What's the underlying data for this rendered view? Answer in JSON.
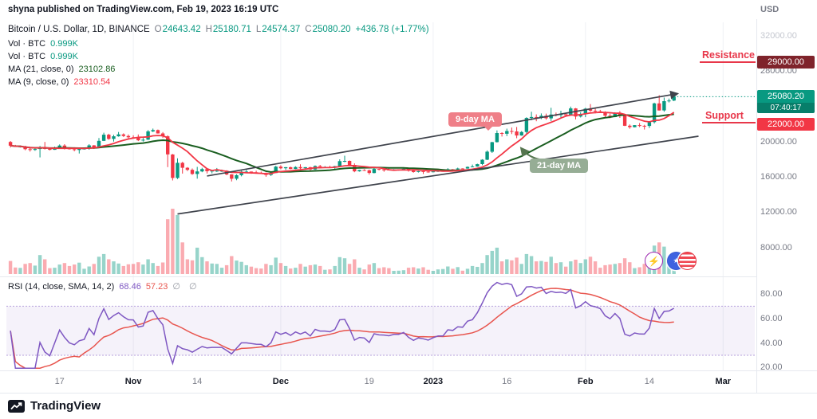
{
  "header": {
    "publish_text": "shyna published on TradingView.com, Feb 19, 2023 16:19 UTC",
    "currency_label": "USD"
  },
  "legend": {
    "symbol": "Bitcoin / U.S. Dollar, 1D, BINANCE",
    "o_label": "O",
    "o": "24643.42",
    "h_label": "H",
    "h": "25180.71",
    "l_label": "L",
    "l": "24574.37",
    "c_label": "C",
    "c": "25080.20",
    "change": "+436.78 (+1.77%)",
    "vol1": {
      "label": "Vol · BTC",
      "value": "0.999K"
    },
    "vol2": {
      "label": "Vol · BTC",
      "value": "0.999K"
    },
    "ma21": {
      "label": "MA (21, close, 0)",
      "value": "23102.86"
    },
    "ma9": {
      "label": "MA (9, close, 0)",
      "value": "23310.54"
    }
  },
  "rsi_legend": {
    "label": "RSI (14, close, SMA, 14, 2)",
    "value": "68.46",
    "signal": "57.23",
    "flags": "∅ ∅"
  },
  "annotations": {
    "resistance": "Resistance",
    "support": "Support",
    "ma9_label": "9-day MA",
    "ma21_label": "21-day MA"
  },
  "price_axis": {
    "resistance_badge": "29000.00",
    "last_price_badge": "25080.20",
    "countdown": "07:40:17",
    "support_badge": "22000.00"
  },
  "icons": {
    "boost": "⚡",
    "star": "★"
  },
  "footer": {
    "brand": "TradingView"
  },
  "colors": {
    "up": "#089981",
    "down": "#f23645",
    "rsi_purple": "#7e57c2",
    "annotation_red": "#e8374a",
    "badge_resistance": "#7f232b",
    "badge_support": "#f23645",
    "badge_last": "#089981",
    "ma9_callout_bg": "#ef7f88",
    "ma21_callout_bg": "#96ad95"
  },
  "chart_data": [
    {
      "type": "candlestick",
      "title": "Bitcoin / U.S. Dollar",
      "interval": "1D",
      "exchange": "BINANCE",
      "last": {
        "open": 24643.42,
        "high": 25180.71,
        "low": 24574.37,
        "close": 25080.2,
        "change": 436.78,
        "change_pct": 1.77
      },
      "ylim": [
        5000,
        33500
      ],
      "colors": {
        "up": "#089981",
        "down": "#f23645",
        "ma21": "#1a5e20",
        "ma9": "#f23645",
        "trendline": "#3f434c",
        "grid": "#eff1f5"
      },
      "ma_overlays": [
        {
          "period": 21,
          "last": 23102.86
        },
        {
          "period": 9,
          "last": 23310.54
        }
      ],
      "levels": [
        {
          "price": 29000,
          "label": "Resistance"
        },
        {
          "price": 22000,
          "label": "Support"
        }
      ],
      "trendlines": [
        {
          "name": "channel-support",
          "i1": 34,
          "p1": 11800,
          "i2": 140,
          "p2": 20600,
          "arrow": false
        },
        {
          "name": "channel-resistance",
          "i1": 40,
          "p1": 16100,
          "i2": 135.5,
          "p2": 25400,
          "arrow": true
        }
      ],
      "price_ticks": [
        {
          "text": "32000.00",
          "p": 32000,
          "faded": true
        },
        {
          "text": "28000.00",
          "p": 28000
        },
        {
          "text": "20000.00",
          "p": 20000
        },
        {
          "text": "16000.00",
          "p": 16000
        },
        {
          "text": "12000.00",
          "p": 12000
        },
        {
          "text": "8000.00",
          "p": 8000
        }
      ],
      "time_ticks": [
        {
          "text": "17",
          "i": 10,
          "major": false
        },
        {
          "text": "Nov",
          "i": 25,
          "major": true
        },
        {
          "text": "14",
          "i": 38,
          "major": false
        },
        {
          "text": "Dec",
          "i": 55,
          "major": true
        },
        {
          "text": "19",
          "i": 73,
          "major": false
        },
        {
          "text": "2023",
          "i": 86,
          "major": true
        },
        {
          "text": "16",
          "i": 101,
          "major": false
        },
        {
          "text": "Feb",
          "i": 117,
          "major": true
        },
        {
          "text": "14",
          "i": 130,
          "major": false
        },
        {
          "text": "Mar",
          "i": 145,
          "major": true
        }
      ],
      "ohlcv": [
        [
          19950,
          20060,
          19320,
          19530,
          620
        ],
        [
          19530,
          19620,
          19410,
          19420,
          310
        ],
        [
          19420,
          19550,
          19320,
          19440,
          290
        ],
        [
          19440,
          19520,
          19020,
          19130,
          480
        ],
        [
          19130,
          19260,
          18860,
          19050,
          520
        ],
        [
          19050,
          19230,
          18950,
          19150,
          400
        ],
        [
          19150,
          19500,
          18200,
          19370,
          900
        ],
        [
          19370,
          19950,
          19100,
          19170,
          700
        ],
        [
          19170,
          19220,
          19000,
          19060,
          280
        ],
        [
          19060,
          19420,
          19060,
          19260,
          300
        ],
        [
          19260,
          19670,
          19160,
          19550,
          450
        ],
        [
          19550,
          19700,
          19100,
          19330,
          520
        ],
        [
          19330,
          19350,
          19090,
          19120,
          380
        ],
        [
          19120,
          19350,
          18900,
          19040,
          450
        ],
        [
          19040,
          19250,
          18650,
          19160,
          540
        ],
        [
          19160,
          19250,
          19100,
          19200,
          250
        ],
        [
          19200,
          19700,
          19070,
          19570,
          360
        ],
        [
          19570,
          19600,
          19160,
          19330,
          480
        ],
        [
          19330,
          20400,
          19250,
          20080,
          820
        ],
        [
          20080,
          21000,
          20050,
          20770,
          950
        ],
        [
          20770,
          20880,
          20200,
          20290,
          700
        ],
        [
          20290,
          20760,
          20000,
          20590,
          600
        ],
        [
          20590,
          21080,
          20550,
          20810,
          500
        ],
        [
          20810,
          20930,
          20520,
          20630,
          380
        ],
        [
          20630,
          20800,
          20220,
          20490,
          460
        ],
        [
          20490,
          20700,
          20330,
          20480,
          480
        ],
        [
          20480,
          20800,
          20050,
          20150,
          560
        ],
        [
          20150,
          20400,
          20000,
          20210,
          450
        ],
        [
          20210,
          21300,
          20180,
          21150,
          700
        ],
        [
          21150,
          21470,
          21070,
          21300,
          520
        ],
        [
          21300,
          21360,
          20900,
          20920,
          380
        ],
        [
          20920,
          21070,
          20400,
          20590,
          550
        ],
        [
          20590,
          20700,
          17100,
          18540,
          2600
        ],
        [
          18540,
          18590,
          15600,
          15880,
          3100
        ],
        [
          15880,
          18100,
          15750,
          17590,
          2800
        ],
        [
          17590,
          17700,
          16370,
          17030,
          1500
        ],
        [
          17030,
          17100,
          16650,
          16800,
          700
        ],
        [
          16800,
          16950,
          16230,
          16330,
          650
        ],
        [
          16330,
          17130,
          15800,
          16620,
          1250
        ],
        [
          16620,
          17020,
          16530,
          16880,
          800
        ],
        [
          16880,
          16980,
          16380,
          16650,
          600
        ],
        [
          16650,
          16750,
          16390,
          16700,
          500
        ],
        [
          16700,
          17000,
          16550,
          16700,
          480
        ],
        [
          16700,
          16820,
          16550,
          16700,
          300
        ],
        [
          16700,
          16750,
          16180,
          16280,
          420
        ],
        [
          16280,
          16300,
          15480,
          15780,
          850
        ],
        [
          15780,
          16290,
          15620,
          16190,
          640
        ],
        [
          16190,
          16700,
          16060,
          16600,
          580
        ],
        [
          16600,
          16790,
          16450,
          16600,
          420
        ],
        [
          16600,
          16620,
          16350,
          16520,
          350
        ],
        [
          16520,
          16700,
          16400,
          16460,
          280
        ],
        [
          16460,
          16600,
          16410,
          16440,
          260
        ],
        [
          16440,
          16490,
          16010,
          16220,
          480
        ],
        [
          16220,
          16550,
          16100,
          16440,
          420
        ],
        [
          16440,
          17250,
          16430,
          17160,
          780
        ],
        [
          17160,
          17320,
          16860,
          16970,
          520
        ],
        [
          16970,
          17110,
          16790,
          17090,
          380
        ],
        [
          17090,
          17160,
          16860,
          16890,
          260
        ],
        [
          16890,
          17200,
          16880,
          17110,
          300
        ],
        [
          17110,
          17420,
          16870,
          16970,
          480
        ],
        [
          16970,
          17110,
          16910,
          17090,
          350
        ],
        [
          17090,
          17140,
          16680,
          16840,
          420
        ],
        [
          16840,
          17300,
          16790,
          17230,
          450
        ],
        [
          17230,
          17360,
          17060,
          17130,
          380
        ],
        [
          17130,
          17220,
          17100,
          17130,
          200
        ],
        [
          17130,
          17270,
          17070,
          17090,
          220
        ],
        [
          17090,
          17240,
          16870,
          17210,
          380
        ],
        [
          17210,
          17990,
          17080,
          17780,
          800
        ],
        [
          17780,
          18390,
          17660,
          17810,
          750
        ],
        [
          17810,
          17860,
          17320,
          17360,
          480
        ],
        [
          17360,
          17530,
          16530,
          16630,
          700
        ],
        [
          16630,
          16800,
          16590,
          16780,
          300
        ],
        [
          16780,
          16870,
          16670,
          16740,
          220
        ],
        [
          16740,
          16820,
          16260,
          16440,
          450
        ],
        [
          16440,
          17060,
          16400,
          16900,
          520
        ],
        [
          16900,
          16930,
          16730,
          16830,
          280
        ],
        [
          16830,
          16870,
          16580,
          16820,
          320
        ],
        [
          16820,
          16960,
          16740,
          16780,
          280
        ],
        [
          16780,
          16880,
          16720,
          16840,
          150
        ],
        [
          16840,
          16860,
          16710,
          16840,
          160
        ],
        [
          16840,
          16950,
          16800,
          16920,
          180
        ],
        [
          16920,
          16980,
          16590,
          16700,
          300
        ],
        [
          16700,
          16780,
          16470,
          16550,
          320
        ],
        [
          16550,
          16660,
          16490,
          16640,
          260
        ],
        [
          16640,
          16650,
          16330,
          16600,
          320
        ],
        [
          16600,
          16680,
          16470,
          16540,
          200
        ],
        [
          16540,
          16630,
          16500,
          16620,
          150
        ],
        [
          16620,
          16780,
          16550,
          16670,
          220
        ],
        [
          16670,
          16780,
          16600,
          16670,
          240
        ],
        [
          16670,
          16990,
          16650,
          16860,
          360
        ],
        [
          16860,
          16880,
          16750,
          16840,
          250
        ],
        [
          16840,
          17040,
          16680,
          16950,
          330
        ],
        [
          16950,
          16980,
          16910,
          16940,
          160
        ],
        [
          16940,
          17180,
          16920,
          17130,
          250
        ],
        [
          17130,
          17390,
          17110,
          17180,
          380
        ],
        [
          17180,
          17490,
          17150,
          17440,
          340
        ],
        [
          17440,
          18000,
          17320,
          17940,
          520
        ],
        [
          17940,
          19000,
          17900,
          18850,
          900
        ],
        [
          18850,
          19970,
          18710,
          19930,
          1100
        ],
        [
          19930,
          21260,
          19890,
          20960,
          1250
        ],
        [
          20960,
          21050,
          20570,
          20880,
          600
        ],
        [
          20880,
          21460,
          20610,
          21190,
          700
        ],
        [
          21190,
          21590,
          20850,
          21140,
          650
        ],
        [
          21140,
          21650,
          20380,
          20680,
          780
        ],
        [
          20680,
          21190,
          20660,
          21080,
          480
        ],
        [
          21080,
          22750,
          20900,
          22670,
          950
        ],
        [
          22670,
          23370,
          22420,
          22780,
          850
        ],
        [
          22780,
          23070,
          22300,
          22710,
          600
        ],
        [
          22710,
          23180,
          22530,
          22920,
          620
        ],
        [
          22920,
          23160,
          22470,
          22630,
          580
        ],
        [
          22630,
          23820,
          22320,
          23060,
          820
        ],
        [
          23060,
          23280,
          22850,
          23010,
          520
        ],
        [
          23010,
          23490,
          22610,
          23080,
          560
        ],
        [
          23080,
          23190,
          22880,
          23030,
          350
        ],
        [
          23030,
          23960,
          22970,
          23750,
          600
        ],
        [
          23750,
          23800,
          22510,
          22830,
          680
        ],
        [
          22830,
          23320,
          22720,
          23130,
          520
        ],
        [
          23130,
          23810,
          22760,
          23720,
          700
        ],
        [
          23720,
          24250,
          23370,
          23490,
          820
        ],
        [
          23490,
          23710,
          23190,
          23430,
          600
        ],
        [
          23430,
          23590,
          23290,
          23330,
          300
        ],
        [
          23330,
          23430,
          22630,
          22930,
          420
        ],
        [
          22930,
          23160,
          22640,
          22760,
          450
        ],
        [
          22760,
          23320,
          22750,
          23250,
          480
        ],
        [
          23250,
          23440,
          22680,
          22960,
          520
        ],
        [
          22960,
          23010,
          21750,
          21790,
          750
        ],
        [
          21790,
          21940,
          21450,
          21630,
          560
        ],
        [
          21630,
          21870,
          21600,
          21860,
          280
        ],
        [
          21860,
          22090,
          21640,
          21780,
          320
        ],
        [
          21780,
          21890,
          21360,
          21770,
          480
        ],
        [
          21770,
          22320,
          21530,
          22200,
          560
        ],
        [
          22200,
          24400,
          22050,
          24320,
          1350
        ],
        [
          24320,
          25250,
          23520,
          23520,
          1500
        ],
        [
          23520,
          24980,
          23370,
          24570,
          1300
        ],
        [
          24570,
          24870,
          24430,
          24640,
          600
        ],
        [
          24643.42,
          25180.71,
          24574.37,
          25080.2,
          999
        ]
      ]
    },
    {
      "type": "line",
      "name": "RSI",
      "params": "14, close, SMA, 14, 2",
      "period": 14,
      "signal_period": 14,
      "last_value": 68.46,
      "last_signal": 57.23,
      "ylim": [
        19,
        91
      ],
      "bands": [
        30,
        70
      ],
      "ticks": [
        {
          "text": "80.00",
          "v": 80
        },
        {
          "text": "60.00",
          "v": 60
        },
        {
          "text": "40.00",
          "v": 40
        },
        {
          "text": "20.00",
          "v": 20
        }
      ],
      "colors": {
        "line": "#7e57c2",
        "signal": "#e8554e",
        "band_fill": "rgba(126,87,194,0.08)",
        "band_edge": "rgba(126,87,194,0.55)"
      }
    }
  ]
}
